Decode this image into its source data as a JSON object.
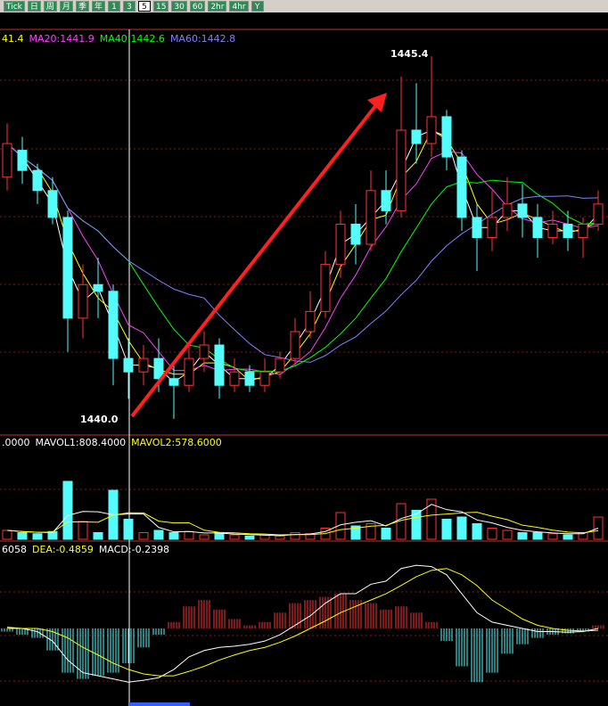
{
  "toolbar": [
    "Tick",
    "日",
    "周",
    "月",
    "季",
    "年",
    "1",
    "3",
    "5",
    "15",
    "30",
    "60",
    "2hr",
    "4hr",
    "Y"
  ],
  "toolbar_selected": "5",
  "chart_data": [
    {
      "type": "candlestick",
      "legend": [
        {
          "text": "41.4",
          "color": "#ffff00"
        },
        {
          "text": "MA20:1441.9",
          "color": "#ff40ff"
        },
        {
          "text": "MA40:1442.6",
          "color": "#00ff00"
        },
        {
          "text": "MA60:1442.8",
          "color": "#8080ff"
        }
      ],
      "annotations": [
        "1445.4",
        "1440.0"
      ],
      "ylim": [
        1439.76,
        1445.76
      ],
      "open": [
        1443.6,
        1444.0,
        1443.7,
        1443.4,
        1443.0,
        1441.5,
        1442.0,
        1441.9,
        1440.9,
        1440.7,
        1440.9,
        1440.6,
        1440.5,
        1440.9,
        1441.1,
        1440.5,
        1440.7,
        1440.5,
        1440.7,
        1440.9,
        1441.3,
        1441.6,
        1442.3,
        1442.9,
        1442.6,
        1443.4,
        1443.1,
        1444.3,
        1444.1,
        1444.5,
        1443.9,
        1443.0,
        1442.7,
        1443.0,
        1443.2,
        1443.0,
        1442.7,
        1442.9,
        1442.7,
        1442.9
      ],
      "close": [
        1444.1,
        1443.7,
        1443.4,
        1443.0,
        1441.5,
        1442.0,
        1441.9,
        1440.9,
        1440.7,
        1440.9,
        1440.6,
        1440.5,
        1440.9,
        1441.1,
        1440.5,
        1440.7,
        1440.5,
        1440.7,
        1440.9,
        1441.3,
        1441.6,
        1442.3,
        1442.9,
        1442.6,
        1443.4,
        1443.1,
        1444.3,
        1444.1,
        1444.5,
        1443.9,
        1443.0,
        1442.7,
        1443.0,
        1443.2,
        1443.0,
        1442.7,
        1442.9,
        1442.7,
        1442.9,
        1443.2
      ],
      "high": [
        1444.4,
        1444.2,
        1443.8,
        1443.6,
        1443.1,
        1442.3,
        1442.4,
        1442.0,
        1441.2,
        1441.1,
        1441.2,
        1440.8,
        1441.1,
        1441.3,
        1441.2,
        1440.9,
        1440.8,
        1440.9,
        1441.0,
        1441.5,
        1441.9,
        1442.5,
        1443.1,
        1443.2,
        1443.7,
        1443.7,
        1445.1,
        1445.0,
        1445.4,
        1444.6,
        1444.0,
        1443.2,
        1443.4,
        1443.6,
        1443.5,
        1443.2,
        1443.1,
        1443.1,
        1443.0,
        1443.4
      ],
      "low": [
        1443.4,
        1443.5,
        1443.2,
        1442.9,
        1441.0,
        1441.2,
        1441.5,
        1440.5,
        1440.3,
        1440.5,
        1440.4,
        1440.0,
        1440.4,
        1440.7,
        1440.3,
        1440.4,
        1440.4,
        1440.4,
        1440.6,
        1440.8,
        1441.2,
        1441.5,
        1442.1,
        1442.3,
        1442.5,
        1442.9,
        1443.0,
        1443.8,
        1443.9,
        1443.7,
        1442.8,
        1442.2,
        1442.5,
        1442.8,
        1442.7,
        1442.4,
        1442.6,
        1442.5,
        1442.4,
        1442.8
      ]
    },
    {
      "type": "bar",
      "legend": [
        {
          "text": ".0000",
          "color": "#ffffff"
        },
        {
          "text": "MAVOL1:808.4000",
          "color": "#ffffff"
        },
        {
          "text": "MAVOL2:578.6000",
          "color": "#ffff00"
        }
      ],
      "ylim": [
        0,
        4000
      ],
      "values": [
        400,
        300,
        250,
        350,
        2600,
        800,
        300,
        2200,
        900,
        300,
        400,
        300,
        350,
        200,
        300,
        200,
        150,
        200,
        150,
        300,
        250,
        500,
        1200,
        600,
        700,
        500,
        1600,
        1300,
        1800,
        900,
        1000,
        700,
        500,
        400,
        300,
        300,
        250,
        200,
        300,
        1000
      ]
    },
    {
      "type": "macd",
      "legend": [
        {
          "text": "6058",
          "color": "#ffffff"
        },
        {
          "text": "DEA:-0.4859",
          "color": "#ffff00"
        },
        {
          "text": "MACD:-0.2398",
          "color": "#ffffff"
        }
      ],
      "ylim": [
        -1.2,
        1.2
      ],
      "values": [
        -0.05,
        -0.1,
        -0.15,
        -0.35,
        -0.7,
        -0.8,
        -0.75,
        -0.7,
        -0.55,
        -0.3,
        -0.1,
        0.1,
        0.35,
        0.45,
        0.3,
        0.15,
        0.05,
        0.1,
        0.25,
        0.4,
        0.45,
        0.5,
        0.55,
        0.45,
        0.4,
        0.3,
        0.35,
        0.25,
        0.1,
        -0.2,
        -0.6,
        -0.85,
        -0.7,
        -0.4,
        -0.25,
        -0.15,
        -0.1,
        -0.08,
        -0.05,
        0.05
      ],
      "dif": [
        0.02,
        0,
        -0.05,
        -0.2,
        -0.5,
        -0.7,
        -0.75,
        -0.8,
        -0.85,
        -0.82,
        -0.78,
        -0.65,
        -0.45,
        -0.35,
        -0.3,
        -0.28,
        -0.25,
        -0.2,
        -0.1,
        0.05,
        0.2,
        0.4,
        0.55,
        0.55,
        0.7,
        0.75,
        0.95,
        1.0,
        0.98,
        0.85,
        0.55,
        0.25,
        0.1,
        0.05,
        0,
        -0.05,
        -0.05,
        -0.06,
        -0.05,
        0
      ],
      "dea": [
        0,
        0,
        0,
        -0.05,
        -0.15,
        -0.3,
        -0.42,
        -0.55,
        -0.65,
        -0.72,
        -0.75,
        -0.75,
        -0.68,
        -0.6,
        -0.5,
        -0.42,
        -0.35,
        -0.3,
        -0.22,
        -0.12,
        0,
        0.12,
        0.25,
        0.35,
        0.45,
        0.55,
        0.68,
        0.82,
        0.92,
        0.95,
        0.85,
        0.68,
        0.45,
        0.3,
        0.15,
        0.05,
        0,
        -0.03,
        -0.04,
        -0.03
      ]
    }
  ]
}
